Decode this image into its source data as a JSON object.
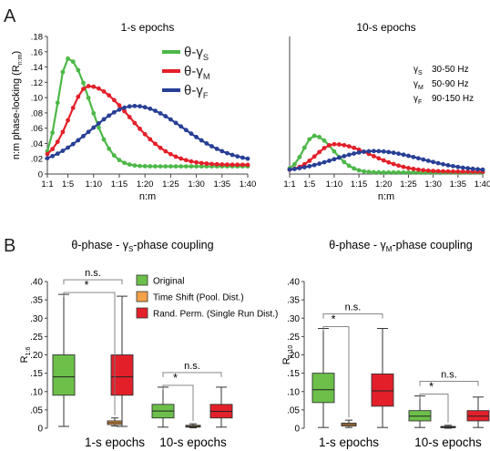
{
  "panels": {
    "A": "A",
    "B": "B"
  },
  "chart_data": [
    {
      "type": "line",
      "title": "1-s epochs",
      "ylabel": "n:m phase-locking (R",
      "ylabel_sub": "n:m",
      "ylabel_close": ")",
      "xlabel": "n:m",
      "x_ticks": [
        "1:1",
        "1:5",
        "1:10",
        "1:15",
        "1:20",
        "1:25",
        "1:30",
        "1:35",
        "1:40"
      ],
      "y_ticks": [
        "0",
        ".02",
        ".04",
        ".06",
        ".08",
        ".10",
        ".12",
        ".14",
        ".16",
        ".18"
      ],
      "xlim": [
        1,
        40
      ],
      "ylim": [
        0,
        0.18
      ],
      "legend": [
        {
          "prefix": "θ-γ",
          "sub": "S",
          "color": "#4db848"
        },
        {
          "prefix": "θ-γ",
          "sub": "M",
          "color": "#e3202a"
        },
        {
          "prefix": "θ-γ",
          "sub": "F",
          "color": "#283f96"
        }
      ],
      "series": [
        {
          "sub": "S",
          "color": "#4db848",
          "peak_x": 5,
          "peak_y": 0.151,
          "base": 0.015,
          "sigma_left": 1.9,
          "sigma_right": 4.2,
          "tail": 0.01
        },
        {
          "sub": "M",
          "color": "#e3202a",
          "peak_x": 9,
          "peak_y": 0.115,
          "base": 0.018,
          "sigma_left": 3.6,
          "sigma_right": 8.0,
          "tail": 0.012
        },
        {
          "sub": "F",
          "color": "#283f96",
          "peak_x": 18,
          "peak_y": 0.089,
          "base": 0.01,
          "sigma_left": 8.5,
          "sigma_right": 9.5,
          "tail": 0.015
        }
      ]
    },
    {
      "type": "line",
      "title": "10-s epochs",
      "xlabel": "n:m",
      "x_ticks": [
        "1:1",
        "1:5",
        "1:10",
        "1:15",
        "1:20",
        "1:25",
        "1:30",
        "1:35",
        "1:40"
      ],
      "xlim": [
        1,
        40
      ],
      "ylim": [
        0,
        0.18
      ],
      "bands": [
        {
          "sub": "S",
          "range": "30-50 Hz"
        },
        {
          "sub": "M",
          "range": "50-90 Hz"
        },
        {
          "sub": "F",
          "range": "90-150 Hz"
        }
      ],
      "series": [
        {
          "sub": "S",
          "color": "#4db848",
          "peak_x": 6,
          "peak_y": 0.05,
          "base": 0.004,
          "sigma_left": 2.2,
          "sigma_right": 3.8,
          "tail": 0.002
        },
        {
          "sub": "M",
          "color": "#e3202a",
          "peak_x": 10,
          "peak_y": 0.039,
          "base": 0.004,
          "sigma_left": 3.6,
          "sigma_right": 7.5,
          "tail": 0.003
        },
        {
          "sub": "F",
          "color": "#283f96",
          "peak_x": 18,
          "peak_y": 0.03,
          "base": 0.003,
          "sigma_left": 8.0,
          "sigma_right": 9.5,
          "tail": 0.004
        }
      ]
    },
    {
      "type": "box",
      "title_prefix": "θ-phase - γ",
      "title_sub": "S",
      "title_suffix": "-phase coupling",
      "ylabel": "R",
      "ylabel_sub": "1:6",
      "y_ticks": [
        "0",
        ".05",
        ".10",
        ".15",
        ".20",
        ".25",
        ".30",
        ".35",
        ".40"
      ],
      "ylim": [
        0,
        0.4
      ],
      "groups": [
        "1-s epochs",
        "10-s epochs"
      ],
      "legend": [
        {
          "label": "Original",
          "color": "#6cc04a"
        },
        {
          "label": "Time Shift (Pool. Dist.)",
          "color": "#f3a24a"
        },
        {
          "label": "Rand. Perm. (Single Run Dist.)",
          "color": "#e3202a"
        }
      ],
      "boxes": [
        {
          "group": 0,
          "cond": 0,
          "min": 0.005,
          "q1": 0.09,
          "median": 0.14,
          "q3": 0.2,
          "max": 0.365
        },
        {
          "group": 0,
          "cond": 1,
          "min": 0.006,
          "q1": 0.01,
          "median": 0.015,
          "q3": 0.02,
          "max": 0.028
        },
        {
          "group": 0,
          "cond": 2,
          "min": 0.005,
          "q1": 0.09,
          "median": 0.14,
          "q3": 0.2,
          "max": 0.36
        },
        {
          "group": 1,
          "cond": 0,
          "min": 0.003,
          "q1": 0.028,
          "median": 0.047,
          "q3": 0.065,
          "max": 0.112
        },
        {
          "group": 1,
          "cond": 1,
          "min": 0.001,
          "q1": 0.003,
          "median": 0.005,
          "q3": 0.008,
          "max": 0.012
        },
        {
          "group": 1,
          "cond": 2,
          "min": 0.003,
          "q1": 0.028,
          "median": 0.046,
          "q3": 0.065,
          "max": 0.112
        }
      ],
      "annotations": [
        {
          "group": 0,
          "from": 0,
          "to": 2,
          "label": "n.s."
        },
        {
          "group": 0,
          "from": 0,
          "to": 1,
          "label": "*"
        },
        {
          "group": 1,
          "from": 0,
          "to": 2,
          "label": "n.s."
        },
        {
          "group": 1,
          "from": 0,
          "to": 1,
          "label": "*"
        }
      ]
    },
    {
      "type": "box",
      "title_prefix": "θ-phase - γ",
      "title_sub": "M",
      "title_suffix": "-phase coupling",
      "ylabel": "R",
      "ylabel_sub": "1:10",
      "y_ticks": [
        "0",
        ".05",
        ".10",
        ".15",
        ".20",
        ".25",
        ".30",
        ".35",
        ".40"
      ],
      "ylim": [
        0,
        0.4
      ],
      "groups": [
        "1-s epochs",
        "10-s epochs"
      ],
      "boxes": [
        {
          "group": 0,
          "cond": 0,
          "min": 0.002,
          "q1": 0.07,
          "median": 0.105,
          "q3": 0.15,
          "max": 0.272
        },
        {
          "group": 0,
          "cond": 1,
          "min": 0.002,
          "q1": 0.006,
          "median": 0.01,
          "q3": 0.014,
          "max": 0.022
        },
        {
          "group": 0,
          "cond": 2,
          "min": 0.002,
          "q1": 0.06,
          "median": 0.102,
          "q3": 0.148,
          "max": 0.272
        },
        {
          "group": 1,
          "cond": 0,
          "min": 0.002,
          "q1": 0.02,
          "median": 0.033,
          "q3": 0.048,
          "max": 0.088
        },
        {
          "group": 1,
          "cond": 1,
          "min": 0.0,
          "q1": 0.002,
          "median": 0.003,
          "q3": 0.005,
          "max": 0.008
        },
        {
          "group": 1,
          "cond": 2,
          "min": 0.002,
          "q1": 0.02,
          "median": 0.033,
          "q3": 0.048,
          "max": 0.085
        }
      ],
      "annotations": [
        {
          "group": 0,
          "from": 0,
          "to": 2,
          "label": "n.s."
        },
        {
          "group": 0,
          "from": 0,
          "to": 1,
          "label": "*"
        },
        {
          "group": 1,
          "from": 0,
          "to": 2,
          "label": "n.s."
        },
        {
          "group": 1,
          "from": 0,
          "to": 1,
          "label": "*"
        }
      ]
    }
  ]
}
